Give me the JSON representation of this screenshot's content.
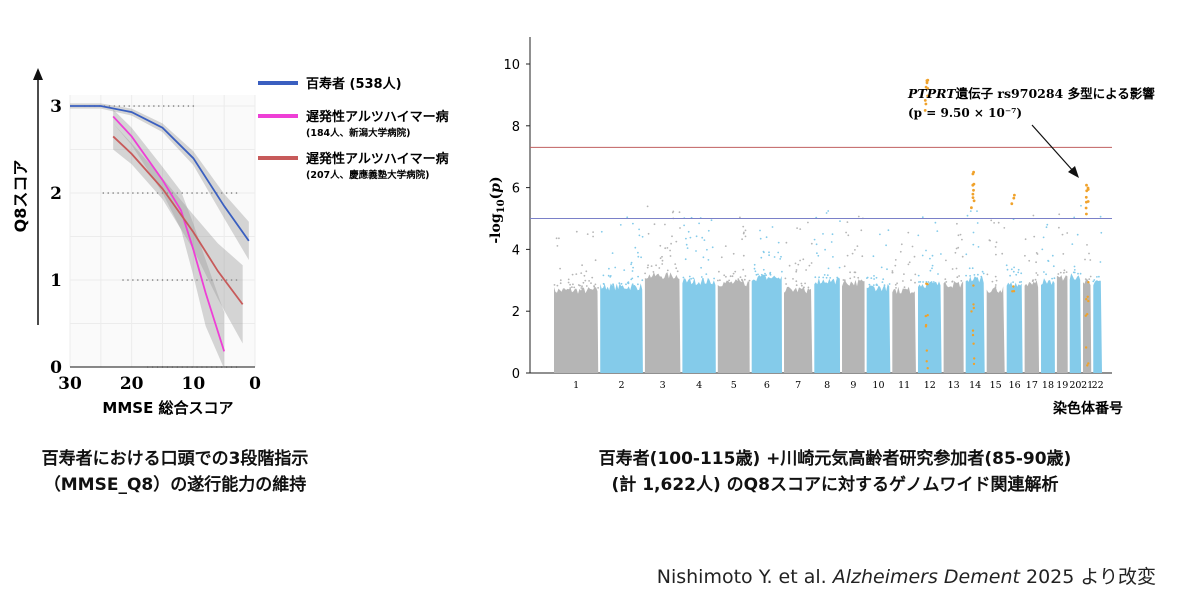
{
  "left_caption": [
    "百寿者における口頭での3段階指示",
    "（MMSE_Q8）の遂行能力の維持"
  ],
  "right_caption": [
    "百寿者(100-115歳) +川崎元気高齢者研究参加者(85-90歳)",
    "(計 1,622人) のQ8スコアに対するゲノムワイド関連解析"
  ],
  "credit": {
    "pre": "Nishimoto Y. et al. ",
    "journal": "Alzheimers Dement",
    "post": " 2025 より改変"
  },
  "chart_data": [
    {
      "type": "line",
      "ylabel": "Q8スコア",
      "xlabel": "MMSE 総合スコア",
      "xlim": [
        30,
        0
      ],
      "ylim": [
        0,
        3
      ],
      "x_ticks": [
        "30",
        "20",
        "10",
        "0"
      ],
      "y_ticks": [
        "0",
        "1",
        "2",
        "3"
      ],
      "grid": true,
      "legend_position": "right",
      "series": [
        {
          "name": "百寿者 (538人)",
          "sub": "",
          "color": "#3a5fc0",
          "x": [
            30,
            25,
            20,
            15,
            10,
            5,
            1
          ],
          "y": [
            3.0,
            3.0,
            2.93,
            2.75,
            2.4,
            1.85,
            1.45
          ],
          "band": [
            0.03,
            0.03,
            0.04,
            0.05,
            0.08,
            0.14,
            0.22
          ]
        },
        {
          "name": "遅発性アルツハイマー病",
          "sub": "(184人、新潟大学病院)",
          "color": "#ee3fd6",
          "x": [
            23,
            20,
            15,
            12,
            10,
            8,
            5
          ],
          "y": [
            2.88,
            2.65,
            2.15,
            1.8,
            1.35,
            0.85,
            0.18
          ],
          "band": [
            0.08,
            0.1,
            0.15,
            0.22,
            0.3,
            0.38,
            0.45
          ]
        },
        {
          "name": "遅発性アルツハイマー病",
          "sub": "(207人、慶應義塾大学病院)",
          "color": "#c75a5a",
          "x": [
            23,
            20,
            15,
            10,
            6,
            2
          ],
          "y": [
            2.65,
            2.45,
            2.05,
            1.55,
            1.1,
            0.72
          ],
          "band": [
            0.15,
            0.12,
            0.12,
            0.2,
            0.32,
            0.45
          ]
        }
      ]
    },
    {
      "type": "scatter",
      "ylabel": "-log10(p)",
      "xlabel": "染色体番号",
      "ylim": [
        0,
        11
      ],
      "y_ticks": [
        "0",
        "2",
        "4",
        "6",
        "8",
        "10"
      ],
      "categories": [
        "1",
        "2",
        "3",
        "4",
        "5",
        "6",
        "7",
        "8",
        "9",
        "10",
        "11",
        "12",
        "13",
        "14",
        "15",
        "16",
        "17",
        "18",
        "19",
        "20",
        "21",
        "22"
      ],
      "colors": {
        "odd": "#b5b5b5",
        "even": "#84cbea",
        "highlight": "#f0a22b"
      },
      "thresholds": [
        {
          "value": 7.3,
          "color": "#c06060"
        },
        {
          "value": 5.0,
          "color": "#7a80c8"
        }
      ],
      "annotation": {
        "gene": "PTPRT",
        "text1": "遺伝子 rs970284 多型による影響",
        "text2": "(p = 9.50 × 10⁻⁷)"
      }
    }
  ]
}
